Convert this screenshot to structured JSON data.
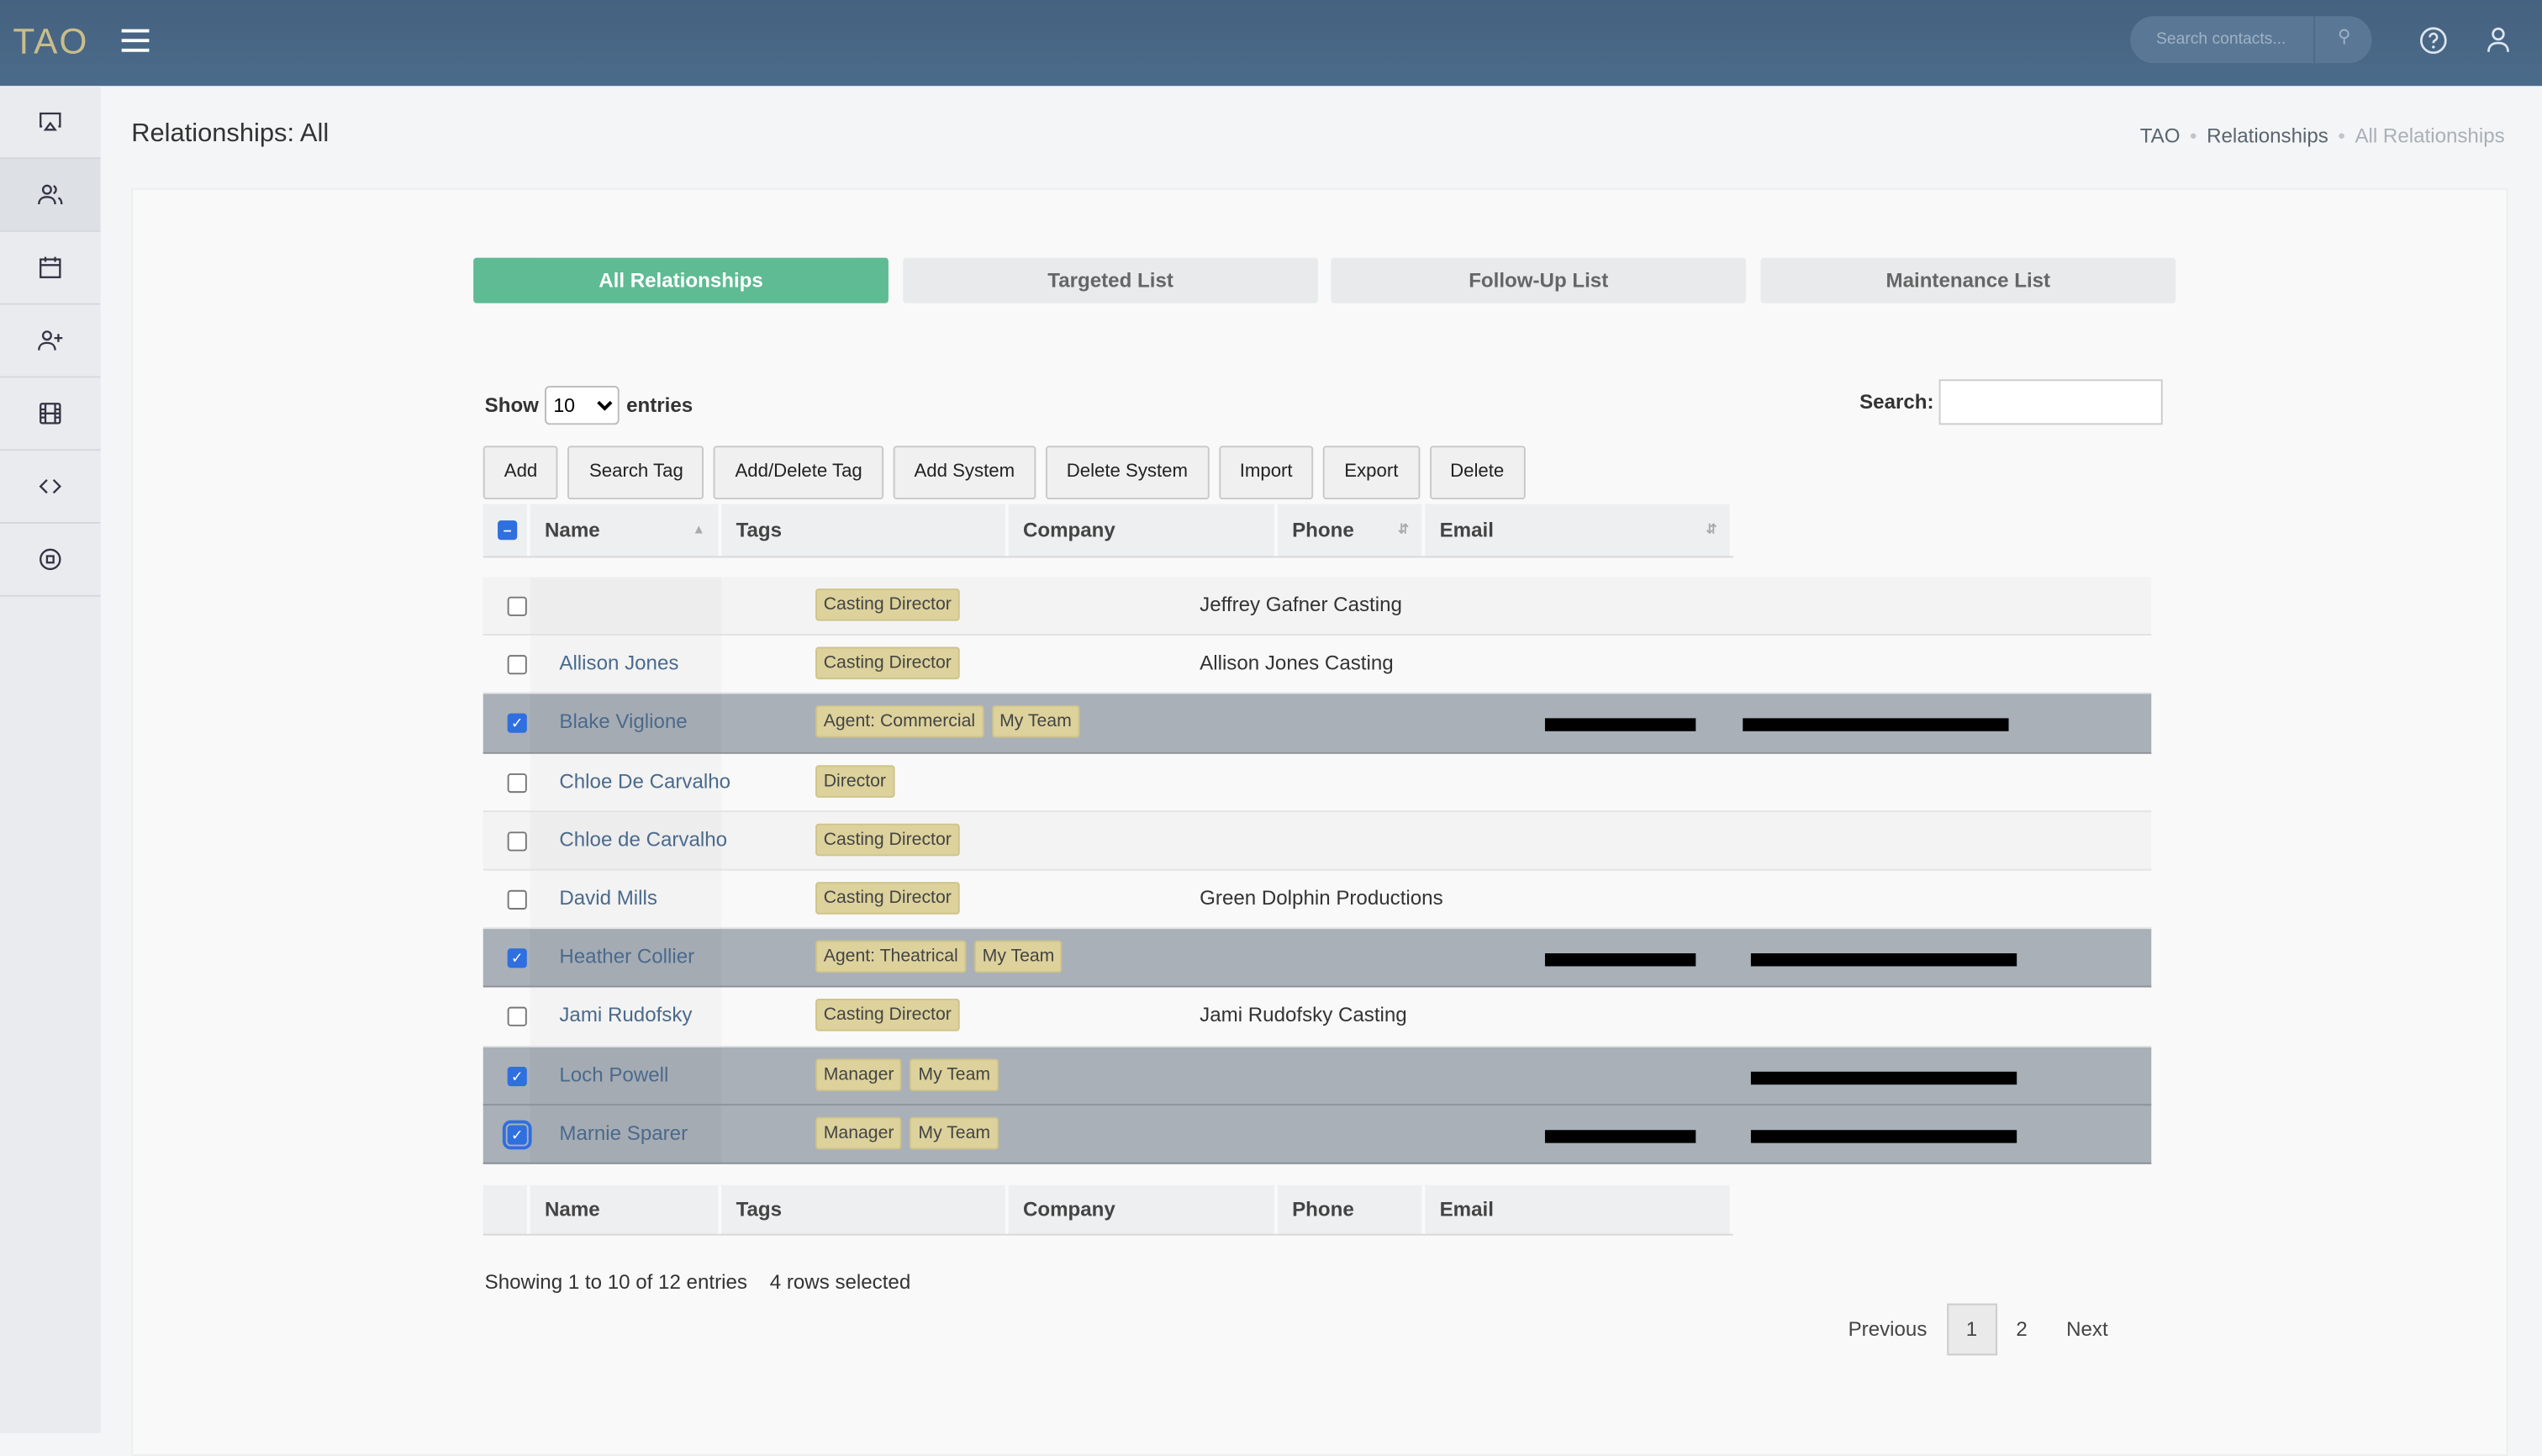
{
  "app": {
    "logo": "TAO",
    "search_placeholder": "Search contacts..."
  },
  "sidebar": {
    "items": [
      {
        "icon": "airplay-icon"
      },
      {
        "icon": "users-icon",
        "active": true
      },
      {
        "icon": "calendar-icon"
      },
      {
        "icon": "user-plus-icon"
      },
      {
        "icon": "film-icon"
      },
      {
        "icon": "code-icon"
      },
      {
        "icon": "stop-circle-icon"
      }
    ]
  },
  "page": {
    "title": "Relationships: All",
    "breadcrumb": [
      "TAO",
      "Relationships",
      "All Relationships"
    ]
  },
  "tabs": [
    "All Relationships",
    "Targeted List",
    "Follow-Up List",
    "Maintenance List"
  ],
  "table_controls": {
    "show": "Show",
    "entries_value": "10",
    "entries": "entries",
    "search_label": "Search:"
  },
  "toolbar": [
    "Add",
    "Search Tag",
    "Add/Delete Tag",
    "Add System",
    "Delete System",
    "Import",
    "Export",
    "Delete"
  ],
  "columns": [
    "Name",
    "Tags",
    "Company",
    "Phone",
    "Email"
  ],
  "rows": [
    {
      "name": "",
      "tags": [
        "Casting Director"
      ],
      "company": "Jeffrey Gafner Casting",
      "selected": false
    },
    {
      "name": "Allison Jones",
      "tags": [
        "Casting Director"
      ],
      "company": "Allison Jones Casting",
      "selected": false
    },
    {
      "name": "Blake Viglione",
      "tags": [
        "Agent: Commercial",
        "My Team"
      ],
      "company": "",
      "selected": true,
      "phone_redacted": true,
      "email_redacted": true
    },
    {
      "name": "Chloe De Carvalho",
      "tags": [
        "Director"
      ],
      "company": "",
      "selected": false
    },
    {
      "name": "Chloe de Carvalho",
      "tags": [
        "Casting Director"
      ],
      "company": "",
      "selected": false
    },
    {
      "name": "David Mills",
      "tags": [
        "Casting Director"
      ],
      "company": "Green Dolphin Productions",
      "selected": false
    },
    {
      "name": "Heather Collier",
      "tags": [
        "Agent: Theatrical",
        "My Team"
      ],
      "company": "",
      "selected": true,
      "phone_redacted": true,
      "email_redacted": true
    },
    {
      "name": "Jami Rudofsky",
      "tags": [
        "Casting Director"
      ],
      "company": "Jami Rudofsky Casting",
      "selected": false
    },
    {
      "name": "Loch Powell",
      "tags": [
        "Manager",
        "My Team"
      ],
      "company": "",
      "selected": true,
      "phone_redacted": false,
      "email_redacted": true
    },
    {
      "name": "Marnie Sparer",
      "tags": [
        "Manager",
        "My Team"
      ],
      "company": "",
      "selected": true,
      "phone_redacted": true,
      "email_redacted": true
    }
  ],
  "footer": {
    "info": "Showing 1 to 10 of 12 entries",
    "selected": "4 rows selected"
  },
  "pagination": {
    "previous": "Previous",
    "pages": [
      "1",
      "2"
    ],
    "current": "1",
    "next": "Next"
  },
  "colors": {
    "header": "#4b6b8b",
    "accent": "#5ebb94",
    "tag": "#ddd29c",
    "selected_row": "#a9b0b8"
  }
}
